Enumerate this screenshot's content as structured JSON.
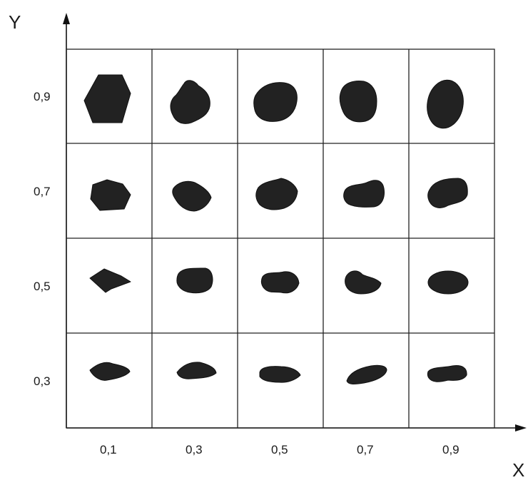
{
  "axes": {
    "x_title": "X",
    "y_title": "Y",
    "x_ticks": [
      "0,1",
      "0,3",
      "0,5",
      "0,7",
      "0,9"
    ],
    "y_ticks": [
      "0,9",
      "0,7",
      "0,5",
      "0,3"
    ]
  },
  "grid": {
    "columns": 5,
    "rows": 4
  },
  "colors": {
    "shape_fill": "#222222",
    "line": "#222222",
    "background": "#ffffff"
  },
  "particles": [
    {
      "x": "0,1",
      "y": "0,9",
      "shape": "hexagon"
    },
    {
      "x": "0,3",
      "y": "0,9",
      "shape": "irregular-blob"
    },
    {
      "x": "0,5",
      "y": "0,9",
      "shape": "rounded-blob"
    },
    {
      "x": "0,7",
      "y": "0,9",
      "shape": "rounded-blob"
    },
    {
      "x": "0,9",
      "y": "0,9",
      "shape": "ellipse"
    },
    {
      "x": "0,1",
      "y": "0,7",
      "shape": "polygon"
    },
    {
      "x": "0,3",
      "y": "0,7",
      "shape": "irregular-blob"
    },
    {
      "x": "0,5",
      "y": "0,7",
      "shape": "irregular-blob"
    },
    {
      "x": "0,7",
      "y": "0,7",
      "shape": "rounded-blob"
    },
    {
      "x": "0,9",
      "y": "0,7",
      "shape": "rounded-blob"
    },
    {
      "x": "0,1",
      "y": "0,5",
      "shape": "rhombus"
    },
    {
      "x": "0,3",
      "y": "0,5",
      "shape": "rounded-blob"
    },
    {
      "x": "0,5",
      "y": "0,5",
      "shape": "rounded-blob"
    },
    {
      "x": "0,7",
      "y": "0,5",
      "shape": "rounded-blob"
    },
    {
      "x": "0,9",
      "y": "0,5",
      "shape": "ellipse"
    },
    {
      "x": "0,1",
      "y": "0,3",
      "shape": "flat-blob"
    },
    {
      "x": "0,3",
      "y": "0,3",
      "shape": "flat-blob"
    },
    {
      "x": "0,5",
      "y": "0,3",
      "shape": "flat-blob"
    },
    {
      "x": "0,7",
      "y": "0,3",
      "shape": "elongated-blob"
    },
    {
      "x": "0,9",
      "y": "0,3",
      "shape": "flat-blob"
    }
  ]
}
